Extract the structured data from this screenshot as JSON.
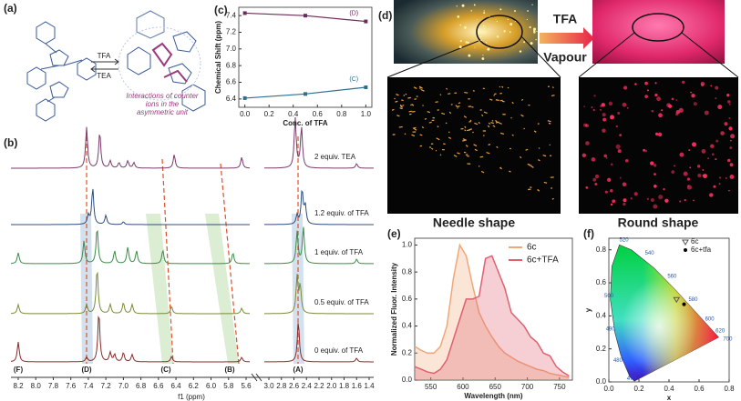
{
  "panel_a": {
    "label": "(a)",
    "arrow_top": "TFA",
    "arrow_bottom": "TEA",
    "caption": [
      "Interactions of counter",
      "ions in the",
      "asymmetric unit"
    ]
  },
  "panel_b": {
    "label": "(b)",
    "traces": [
      "2 equiv. TEA",
      "1.2 equiv. of TFA",
      "1 equiv. of TFA",
      "0.5 equiv. of TFA",
      "0 equiv. of TFA"
    ],
    "peaks": [
      "(F)",
      "(D)",
      "(C)",
      "(B)",
      "(A)"
    ],
    "ticks": [
      "8.2",
      "8.0",
      "7.8",
      "7.6",
      "7.4",
      "7.2",
      "7.0",
      "6.8",
      "6.6",
      "6.4",
      "6.2",
      "6.0",
      "5.8",
      "5.6",
      "3.0",
      "2.8",
      "2.6",
      "2.4",
      "2.2",
      "2.0",
      "1.8",
      "1.6",
      "1.4"
    ],
    "xlabel": "f1 (ppm)"
  },
  "panel_d": {
    "label": "(d)",
    "arrow_top": "TFA",
    "arrow_bottom": "Vapour",
    "left_caption": "Needle shape",
    "right_caption": "Round shape"
  },
  "chart_data": [
    {
      "type": "line",
      "label": "(c)",
      "xlabel": "Conc. of TFA",
      "ylabel": "Chemical Shift (ppm)",
      "x": [
        0,
        0.5,
        1
      ],
      "xlim": [
        -0.05,
        1.05
      ],
      "xticks": [
        {
          "value": 0,
          "label": "0.0"
        },
        0.2,
        0.4,
        0.6,
        0.8,
        {
          "value": 1,
          "label": "1.0"
        }
      ],
      "ylim": [
        6.3,
        7.5
      ],
      "yticks": [
        6.4,
        6.6,
        6.8,
        {
          "value": 7,
          "label": "7.0"
        },
        7.2,
        7.4
      ],
      "series": [
        {
          "name": "(D)",
          "color": "#6b2c5a",
          "values": [
            7.43,
            7.4,
            7.33
          ]
        },
        {
          "name": "(C)",
          "color": "#2e6f8e",
          "values": [
            6.41,
            6.46,
            6.54
          ]
        }
      ]
    },
    {
      "type": "area",
      "label": "(e)",
      "xlabel": "Wavelength (nm)",
      "ylabel": "Normalized Fluor. Intensity",
      "x": [
        525,
        535,
        545,
        555,
        565,
        575,
        585,
        595,
        605,
        615,
        625,
        635,
        645,
        655,
        665,
        675,
        685,
        695,
        705,
        715,
        725,
        735,
        745,
        755,
        765
      ],
      "xlim": [
        525,
        770
      ],
      "xticks": [
        550,
        600,
        650,
        700,
        750
      ],
      "ylim": [
        0,
        1.05
      ],
      "yticks": [
        {
          "value": 0,
          "label": "0.0"
        },
        0.2,
        0.4,
        0.6,
        0.8,
        {
          "value": 1,
          "label": "1.0"
        }
      ],
      "series": [
        {
          "name": "6c",
          "color": "#f0a878",
          "values": [
            0.25,
            0.22,
            0.2,
            0.2,
            0.25,
            0.4,
            0.75,
            1.0,
            0.92,
            0.7,
            0.5,
            0.4,
            0.32,
            0.25,
            0.2,
            0.17,
            0.14,
            0.12,
            0.1,
            0.08,
            0.07,
            0.05,
            0.04,
            0.03,
            0.02
          ]
        },
        {
          "name": "6c+TFA",
          "color": "#e06070",
          "values": [
            0.1,
            0.08,
            0.06,
            0.05,
            0.08,
            0.15,
            0.3,
            0.45,
            0.6,
            0.6,
            0.62,
            0.9,
            0.92,
            0.8,
            0.68,
            0.5,
            0.45,
            0.4,
            0.32,
            0.28,
            0.2,
            0.18,
            0.1,
            0.06,
            0.03
          ]
        }
      ]
    },
    {
      "type": "scatter",
      "label": "(f)",
      "xlabel": "x",
      "ylabel": "y",
      "xlim": [
        0,
        0.8
      ],
      "xticks": [
        {
          "value": 0,
          "label": "0.0"
        },
        0.2,
        0.4,
        0.6,
        0.8
      ],
      "ylim": [
        0,
        0.87
      ],
      "yticks": [
        {
          "value": 0,
          "label": "0.0"
        },
        0.2,
        0.4,
        0.6,
        0.8
      ],
      "locus_labels": [
        "520",
        "540",
        "560",
        "580",
        "600",
        "620",
        "700",
        "500",
        "490",
        "480",
        "470"
      ],
      "series": [
        {
          "name": "6c",
          "color": "#555555",
          "x": [
            0.45
          ],
          "values": [
            0.5
          ]
        },
        {
          "name": "6c+tfa",
          "color": "#000000",
          "x": [
            0.5
          ],
          "values": [
            0.47
          ]
        }
      ]
    }
  ]
}
